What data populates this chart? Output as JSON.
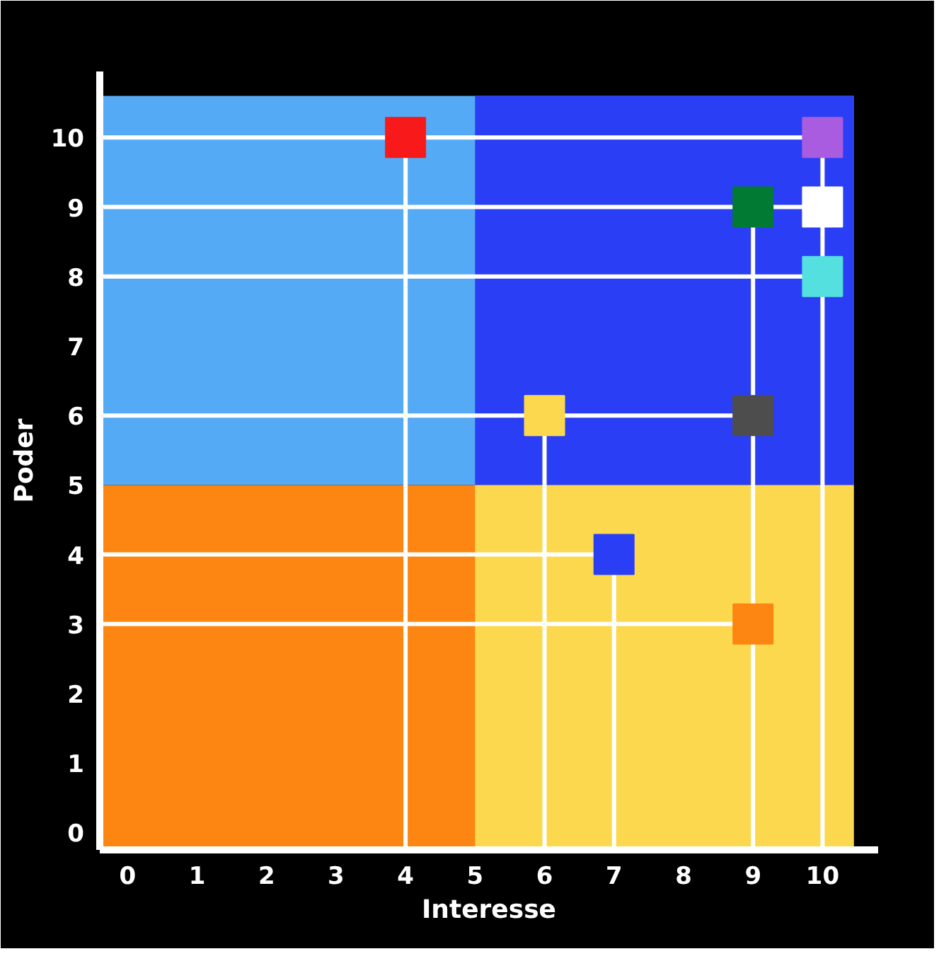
{
  "chart_data": {
    "type": "scatter",
    "xlabel": "Interesse",
    "ylabel": "Poder",
    "x": [
      4,
      10,
      9,
      10,
      10,
      6,
      9,
      7,
      9
    ],
    "values": [
      10,
      10,
      9,
      9,
      8,
      6,
      6,
      4,
      3
    ],
    "colors": [
      "#f81a1a",
      "#a95ce0",
      "#017a33",
      "#ffffff",
      "#55e0e0",
      "#fcd84e",
      "#4d4d4d",
      "#2a3ef5",
      "#fd8512"
    ],
    "marker": "square",
    "xlim": [
      -0.4,
      10.8
    ],
    "ylim": [
      -0.25,
      10.95
    ],
    "xticks": [
      0,
      1,
      2,
      3,
      4,
      5,
      6,
      7,
      8,
      9,
      10
    ],
    "yticks": [
      0,
      1,
      2,
      3,
      4,
      5,
      6,
      7,
      8,
      9,
      10
    ],
    "bands": [
      {
        "axis": "y",
        "from": 5,
        "to": 10.6,
        "color": "#55aaf5"
      },
      {
        "axis": "y",
        "from": -0.25,
        "to": 5,
        "color": "#fd8512"
      },
      {
        "axis": "x",
        "from": 5,
        "to": 10.45,
        "color": "#2a3ef5"
      },
      {
        "axis": "x",
        "from": 5,
        "to": 10.45,
        "color": "#fcd84e"
      }
    ],
    "ref_lines": [
      {
        "axis": "y",
        "value": 10,
        "color": "#ffffff"
      },
      {
        "axis": "y",
        "value": 9,
        "color": "#ffffff"
      },
      {
        "axis": "y",
        "value": 8,
        "color": "#ffffff"
      },
      {
        "axis": "y",
        "value": 6,
        "color": "#ffffff"
      },
      {
        "axis": "y",
        "value": 4,
        "color": "#ffffff"
      },
      {
        "axis": "y",
        "value": 3,
        "color": "#ffffff"
      },
      {
        "axis": "x",
        "value": 4,
        "color": "#ffffff"
      },
      {
        "axis": "x",
        "value": 6,
        "color": "#ffffff"
      },
      {
        "axis": "x",
        "value": 7,
        "color": "#ffffff"
      },
      {
        "axis": "x",
        "value": 9,
        "color": "#ffffff"
      },
      {
        "axis": "x",
        "value": 10,
        "color": "#ffffff"
      }
    ]
  }
}
